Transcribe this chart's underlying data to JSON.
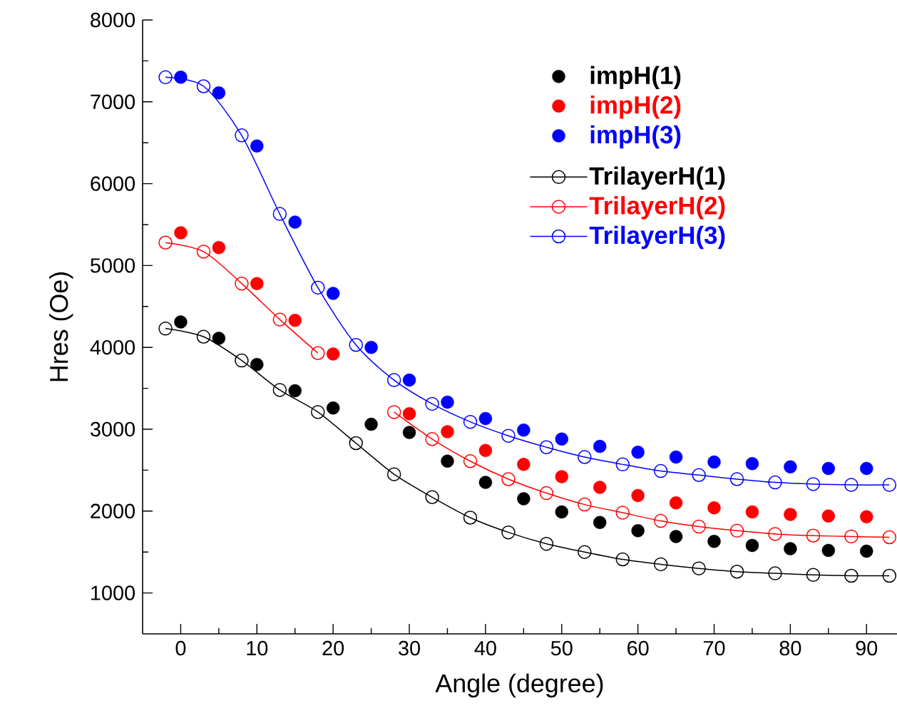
{
  "chart_data": {
    "type": "scatter",
    "xlabel": "Angle (degree)",
    "ylabel": "Hres (Oe)",
    "xlim": [
      -5,
      94
    ],
    "ylim": [
      500,
      8000
    ],
    "xticks": [
      0,
      10,
      20,
      30,
      40,
      50,
      60,
      70,
      80,
      90
    ],
    "yticks": [
      1000,
      2000,
      3000,
      4000,
      5000,
      6000,
      7000,
      8000
    ],
    "legend": "top right",
    "marker": "circle",
    "grid": false,
    "series": [
      {
        "name": "impH(1)",
        "color": "#000000",
        "x": [
          0,
          5,
          10,
          15,
          20,
          25,
          30,
          35,
          40,
          45,
          50,
          55,
          60,
          65,
          70,
          75,
          80,
          85,
          90
        ],
        "values": [
          4310,
          4110,
          3790,
          3470,
          3260,
          3060,
          2960,
          2610,
          2350,
          2150,
          1990,
          1860,
          1760,
          1690,
          1630,
          1580,
          1540,
          1520,
          1510
        ]
      },
      {
        "name": "impH(2)",
        "color": "#ff0000",
        "x": [
          0,
          5,
          10,
          15,
          20,
          30,
          35,
          40,
          45,
          50,
          55,
          60,
          65,
          70,
          75,
          80,
          85,
          90
        ],
        "values": [
          5400,
          5220,
          4780,
          4330,
          3920,
          3190,
          2970,
          2740,
          2570,
          2420,
          2290,
          2190,
          2100,
          2040,
          1990,
          1960,
          1940,
          1930
        ]
      },
      {
        "name": "impH(3)",
        "color": "#0000ff",
        "x": [
          0,
          5,
          10,
          15,
          20,
          25,
          30,
          35,
          40,
          45,
          50,
          55,
          60,
          65,
          70,
          75,
          80,
          85,
          90
        ],
        "values": [
          7300,
          7110,
          6460,
          5530,
          4660,
          4000,
          3600,
          3330,
          3130,
          2990,
          2880,
          2790,
          2720,
          2660,
          2600,
          2580,
          2540,
          2520,
          2520
        ]
      },
      {
        "name": "TrilayerH(1)",
        "type": "line",
        "color": "#000000",
        "x": [
          -2,
          3,
          8,
          13,
          18,
          23,
          28,
          33,
          38,
          43,
          48,
          53,
          58,
          63,
          68,
          73,
          78,
          83,
          88,
          93
        ],
        "values": [
          4230,
          4130,
          3840,
          3480,
          3210,
          2830,
          2450,
          2170,
          1920,
          1740,
          1600,
          1500,
          1410,
          1350,
          1300,
          1260,
          1240,
          1220,
          1210,
          1210
        ]
      },
      {
        "name": "TrilayerH(2)",
        "type": "line",
        "color": "#ff0000",
        "x": [
          -2,
          3,
          8,
          13,
          18,
          23,
          28,
          33,
          38,
          43,
          48,
          53,
          58,
          63,
          68,
          73,
          78,
          83,
          88,
          93
        ],
        "values": [
          5280,
          5170,
          4780,
          4340,
          3930,
          null,
          3210,
          2880,
          2610,
          2390,
          2220,
          2080,
          1980,
          1880,
          1810,
          1760,
          1720,
          1700,
          1690,
          1680
        ]
      },
      {
        "name": "TrilayerH(3)",
        "type": "line",
        "color": "#0000ff",
        "x": [
          -2,
          3,
          8,
          13,
          18,
          23,
          28,
          33,
          38,
          43,
          48,
          53,
          58,
          63,
          68,
          73,
          78,
          83,
          88,
          93
        ],
        "values": [
          7300,
          7190,
          6590,
          5630,
          4730,
          4030,
          3600,
          3310,
          3090,
          2920,
          2780,
          2660,
          2570,
          2490,
          2440,
          2390,
          2350,
          2330,
          2320,
          2320
        ]
      }
    ]
  }
}
